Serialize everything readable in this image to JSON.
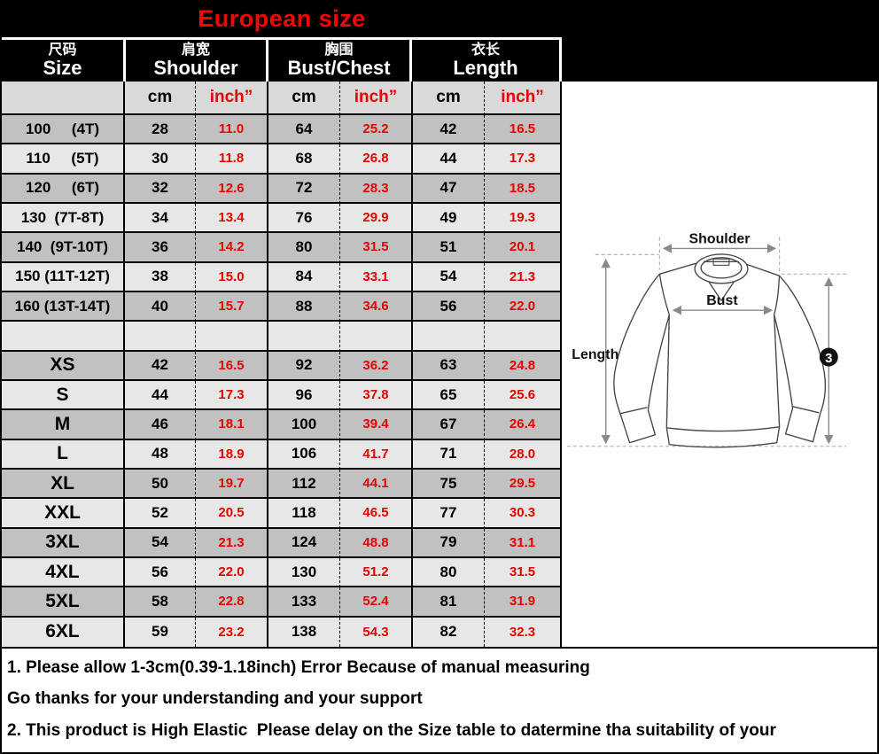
{
  "chart_data": {
    "type": "table",
    "title": "European size",
    "column_groups": [
      {
        "zh": "尺码",
        "en": "Size"
      },
      {
        "zh": "肩宽",
        "en": "Shoulder"
      },
      {
        "zh": "胸围",
        "en": "Bust/Chest"
      },
      {
        "zh": "衣长",
        "en": "Length"
      }
    ],
    "units": [
      "cm",
      "inch”",
      "cm",
      "inch”",
      "cm",
      "inch”"
    ],
    "rows": [
      {
        "size": "100     (4T)",
        "values": [
          "28",
          "11.0",
          "64",
          "25.2",
          "42",
          "16.5"
        ]
      },
      {
        "size": "110     (5T)",
        "values": [
          "30",
          "11.8",
          "68",
          "26.8",
          "44",
          "17.3"
        ]
      },
      {
        "size": "120     (6T)",
        "values": [
          "32",
          "12.6",
          "72",
          "28.3",
          "47",
          "18.5"
        ]
      },
      {
        "size": "130  (7T-8T)",
        "values": [
          "34",
          "13.4",
          "76",
          "29.9",
          "49",
          "19.3"
        ]
      },
      {
        "size": "140  (9T-10T)",
        "values": [
          "36",
          "14.2",
          "80",
          "31.5",
          "51",
          "20.1"
        ]
      },
      {
        "size": "150 (11T-12T)",
        "values": [
          "38",
          "15.0",
          "84",
          "33.1",
          "54",
          "21.3"
        ]
      },
      {
        "size": "160 (13T-14T)",
        "values": [
          "40",
          "15.7",
          "88",
          "34.6",
          "56",
          "22.0"
        ]
      },
      {
        "size": "",
        "values": [
          "",
          "",
          "",
          "",
          "",
          ""
        ]
      },
      {
        "size": "XS",
        "values": [
          "42",
          "16.5",
          "92",
          "36.2",
          "63",
          "24.8"
        ]
      },
      {
        "size": "S",
        "values": [
          "44",
          "17.3",
          "96",
          "37.8",
          "65",
          "25.6"
        ]
      },
      {
        "size": "M",
        "values": [
          "46",
          "18.1",
          "100",
          "39.4",
          "67",
          "26.4"
        ]
      },
      {
        "size": "L",
        "values": [
          "48",
          "18.9",
          "106",
          "41.7",
          "71",
          "28.0"
        ]
      },
      {
        "size": "XL",
        "values": [
          "50",
          "19.7",
          "112",
          "44.1",
          "75",
          "29.5"
        ]
      },
      {
        "size": "XXL",
        "values": [
          "52",
          "20.5",
          "118",
          "46.5",
          "77",
          "30.3"
        ]
      },
      {
        "size": "3XL",
        "values": [
          "54",
          "21.3",
          "124",
          "48.8",
          "79",
          "31.1"
        ]
      },
      {
        "size": "4XL",
        "values": [
          "56",
          "22.0",
          "130",
          "51.2",
          "80",
          "31.5"
        ]
      },
      {
        "size": "5XL",
        "values": [
          "58",
          "22.8",
          "133",
          "52.4",
          "81",
          "31.9"
        ]
      },
      {
        "size": "6XL",
        "values": [
          "59",
          "23.2",
          "138",
          "54.3",
          "82",
          "32.3"
        ]
      }
    ]
  },
  "diagram": {
    "shoulder_label": "Shoulder",
    "bust_label": "Bust",
    "length_label": "Length",
    "badge": "3"
  },
  "notes": [
    "1. Please allow 1-3cm(0.39-1.18inch) Error Because of manual measuring",
    "Go thanks for your understanding and your support",
    "2. This product is High Elastic  Please delay on the Size table to datermine tha suitability of your"
  ],
  "colors": {
    "header_bg": "#000000",
    "title_red": "#ff0000",
    "value_red": "#e60000",
    "row_dark": "#c1c1c1",
    "row_light": "#e7e7e7",
    "subheader_gray": "#d9d9d9"
  }
}
